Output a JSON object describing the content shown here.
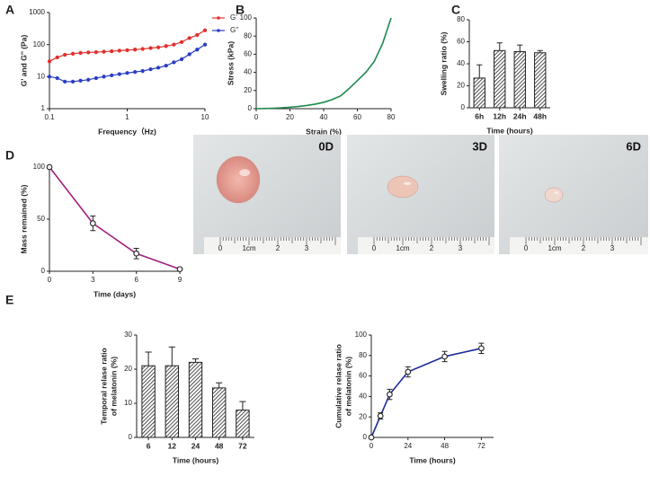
{
  "chart_data": [
    {
      "type": "line",
      "panel": "A",
      "xlabel": "Frequency（Hz)",
      "ylabel": [
        "G' and G'' (Pa)"
      ],
      "xlog": true,
      "ylog": true,
      "legend": "right",
      "x": [
        0.1,
        0.126,
        0.158,
        0.2,
        0.251,
        0.316,
        0.398,
        0.501,
        0.631,
        0.794,
        1,
        1.26,
        1.58,
        2,
        2.51,
        3.16,
        3.98,
        5.01,
        6.31,
        7.94,
        10
      ],
      "xlim": [
        0.1,
        10
      ],
      "xticks": [
        0.1,
        1,
        10
      ],
      "ylim": [
        1,
        1000
      ],
      "yticks": [
        1,
        10,
        100,
        1000
      ],
      "series": [
        {
          "name": "G'",
          "color": "#e0312f",
          "markers": true,
          "values": [
            30,
            40,
            48,
            52,
            55,
            57,
            58,
            60,
            62,
            65,
            67,
            70,
            73,
            78,
            82,
            90,
            100,
            120,
            160,
            200,
            280
          ]
        },
        {
          "name": "G''",
          "color": "#2b3fc4",
          "markers": true,
          "values": [
            10,
            9,
            7,
            7,
            7.5,
            8,
            9,
            10,
            11,
            12,
            13,
            14,
            15,
            17,
            19,
            22,
            28,
            35,
            50,
            70,
            100
          ]
        }
      ]
    },
    {
      "type": "line",
      "panel": "B",
      "xlabel": "Strain (%)",
      "ylabel": [
        "Stress (kPa)"
      ],
      "x": [
        0,
        5,
        10,
        15,
        20,
        25,
        30,
        35,
        40,
        45,
        50,
        55,
        60,
        65,
        70,
        75,
        80
      ],
      "xlim": [
        0,
        80
      ],
      "xticks": [
        0,
        20,
        40,
        60,
        80
      ],
      "ylim": [
        0,
        100
      ],
      "yticks": [
        0,
        20,
        40,
        60,
        80,
        100
      ],
      "series": [
        {
          "color": "#1e8a4c",
          "markers": false,
          "values": [
            0,
            0.2,
            0.5,
            1,
            1.6,
            2.4,
            3.5,
            5,
            7,
            10,
            14,
            22,
            31,
            40,
            52,
            72,
            100
          ]
        }
      ]
    },
    {
      "type": "bar",
      "panel": "C",
      "xlabel": "Time (hours)",
      "ylabel": [
        "Swelling ratio (%)"
      ],
      "categories": [
        "6h",
        "12h",
        "24h",
        "48h"
      ],
      "values": [
        27,
        52,
        51,
        50
      ],
      "errors": [
        12,
        7,
        6,
        2
      ],
      "ylim": [
        0,
        80
      ],
      "yticks": [
        0,
        20,
        40,
        60,
        80
      ]
    },
    {
      "type": "line",
      "panel": "D",
      "xlabel": "Time (days)",
      "ylabel": [
        "Mass remained (%)"
      ],
      "x": [
        0,
        3,
        6,
        9
      ],
      "xlim": [
        0,
        9
      ],
      "xticks": [
        0,
        3,
        6,
        9
      ],
      "ylim": [
        0,
        100
      ],
      "yticks": [
        0,
        50,
        100
      ],
      "series": [
        {
          "color": "#a3207d",
          "markers": true,
          "values": [
            100,
            46,
            17,
            2
          ],
          "errors": [
            0,
            7,
            5,
            0
          ]
        }
      ]
    },
    {
      "type": "bar",
      "panel": "E",
      "xlabel": "Time (hours)",
      "ylabel": [
        "Temporal relase ratio",
        "of melatonin (%)"
      ],
      "categories": [
        "6",
        "12",
        "24",
        "48",
        "72"
      ],
      "values": [
        21,
        21,
        22,
        14.5,
        8
      ],
      "errors": [
        4,
        5.5,
        1,
        1.5,
        2.5
      ],
      "ylim": [
        0,
        30
      ],
      "yticks": [
        0,
        10,
        20,
        30
      ]
    },
    {
      "type": "line",
      "xlabel": "Time (hours)",
      "ylabel": [
        "Cumulative relase ratio",
        "of melatonin (%)"
      ],
      "x": [
        0,
        6,
        12,
        24,
        48,
        72
      ],
      "xlim": [
        0,
        80
      ],
      "xticks": [
        0,
        24,
        48,
        72
      ],
      "ylim": [
        0,
        100
      ],
      "yticks": [
        0,
        20,
        40,
        60,
        80,
        100
      ],
      "series": [
        {
          "color": "#1a2a9a",
          "markers": true,
          "values": [
            0,
            21,
            42,
            64,
            79,
            87
          ],
          "errors": [
            0,
            3,
            5,
            5,
            5,
            5
          ]
        }
      ]
    }
  ],
  "photos": {
    "labels": [
      "0D",
      "3D",
      "6D"
    ],
    "ruler_labels": [
      "0",
      "1cm",
      "2",
      "3"
    ]
  }
}
